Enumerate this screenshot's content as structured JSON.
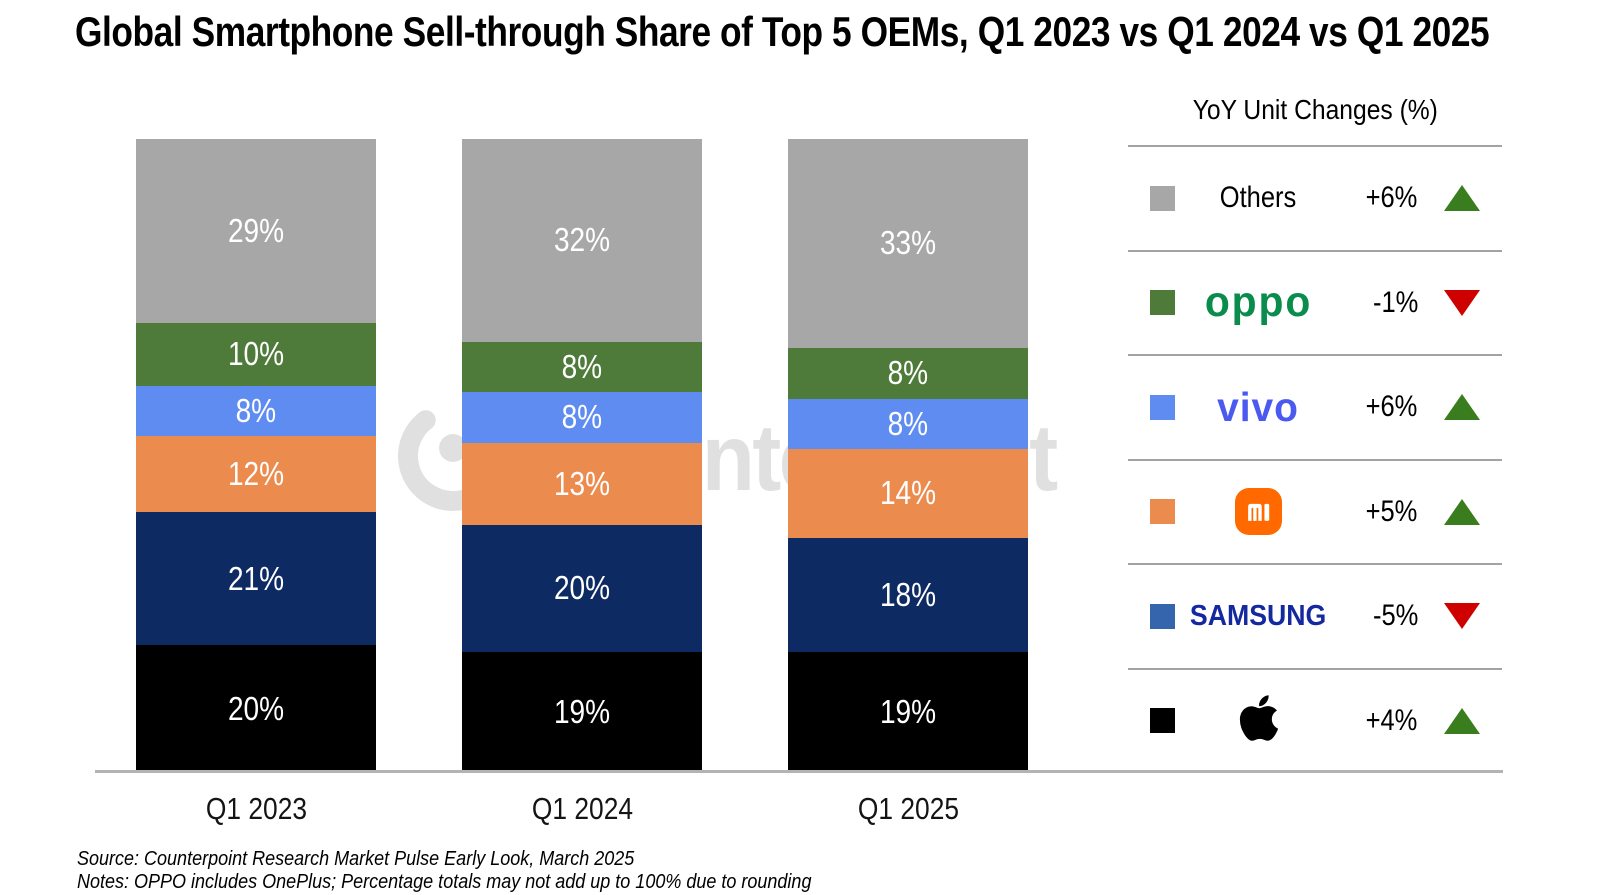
{
  "title": "Global Smartphone Sell-through Share of Top 5 OEMs, Q1 2023 vs Q1 2024 vs Q1 2025",
  "watermark": {
    "text": "Counterpoint"
  },
  "chart_data": {
    "type": "bar",
    "subtype": "stacked-100",
    "categories": [
      "Q1 2023",
      "Q1 2024",
      "Q1 2025"
    ],
    "series": [
      {
        "name": "Apple",
        "color": "#000000",
        "values": [
          20,
          19,
          19
        ]
      },
      {
        "name": "Samsung",
        "color": "#0e2a63",
        "values": [
          21,
          20,
          18
        ]
      },
      {
        "name": "Xiaomi",
        "color": "#ec8b4e",
        "values": [
          12,
          13,
          14
        ]
      },
      {
        "name": "vivo",
        "color": "#5e8cf0",
        "values": [
          8,
          8,
          8
        ]
      },
      {
        "name": "OPPO",
        "color": "#4e7b3a",
        "values": [
          10,
          8,
          8
        ]
      },
      {
        "name": "Others",
        "color": "#a7a7a7",
        "values": [
          29,
          32,
          33
        ]
      }
    ],
    "stack_order": "bottom-to-top",
    "value_suffix": "%",
    "value_label_color": "#ffffff",
    "ylim": [
      0,
      100
    ],
    "grid": false,
    "legend_position": "right"
  },
  "legend": {
    "title": "YoY Unit Changes (%)",
    "up_color": "#3a7d1e",
    "down_color": "#cf0000",
    "rows": [
      {
        "brand": "Others",
        "label": "Others",
        "change": "+6%",
        "direction": "up",
        "swatch": "#a7a7a7"
      },
      {
        "brand": "OPPO",
        "label": "oppo",
        "change": "-1%",
        "direction": "down",
        "swatch": "#4e7b3a",
        "logo_color": "#0a8c4d"
      },
      {
        "brand": "vivo",
        "label": "vivo",
        "change": "+6%",
        "direction": "up",
        "swatch": "#5e8cf0",
        "logo_color": "#4a5af0"
      },
      {
        "brand": "Xiaomi",
        "label": "mi",
        "change": "+5%",
        "direction": "up",
        "swatch": "#ec8b4e",
        "logo_color": "#ff6900"
      },
      {
        "brand": "Samsung",
        "label": "SAMSUNG",
        "change": "-5%",
        "direction": "down",
        "swatch": "#3565ac",
        "logo_color": "#1428a0"
      },
      {
        "brand": "Apple",
        "label": "",
        "change": "+4%",
        "direction": "up",
        "swatch": "#000000"
      }
    ]
  },
  "footer": {
    "source": "Source: Counterpoint Research Market Pulse Early Look, March 2025",
    "notes": "Notes: OPPO includes OnePlus; Percentage totals may not add up to 100% due to rounding"
  }
}
